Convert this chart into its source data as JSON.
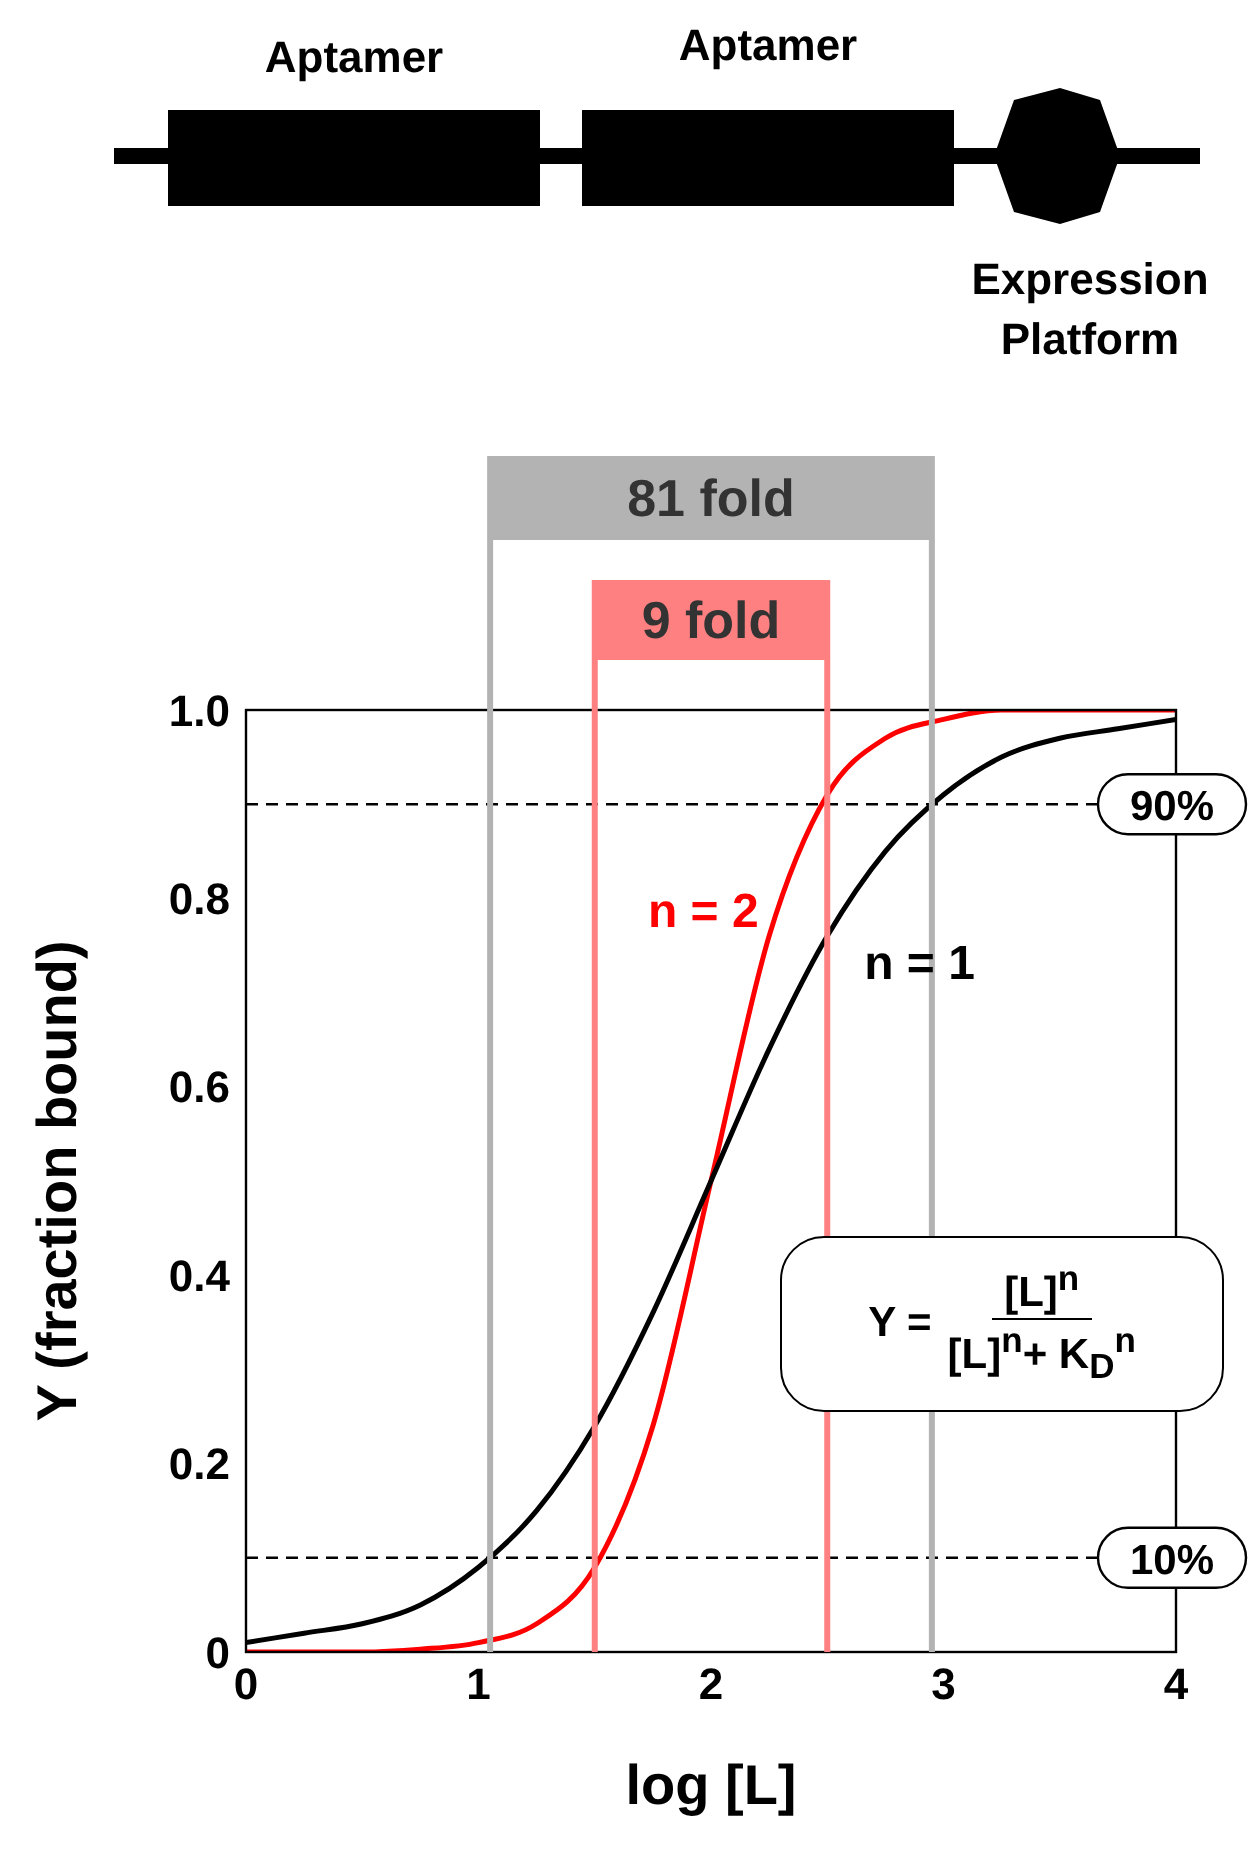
{
  "chart_data": {
    "type": "line",
    "xlabel": "log [L]",
    "ylabel": "Y (fraction bound)",
    "x": [
      0,
      0.25,
      0.5,
      0.75,
      1,
      1.25,
      1.5,
      1.75,
      2,
      2.25,
      2.5,
      2.75,
      3,
      3.25,
      3.5,
      3.75,
      4
    ],
    "series": [
      {
        "name": "n = 2",
        "color": "#ff0000",
        "values": [
          0,
          0,
          0,
          0.003,
          0.01,
          0.03,
          0.09,
          0.24,
          0.5,
          0.76,
          0.91,
          0.97,
          0.99,
          1,
          1,
          1,
          1
        ]
      },
      {
        "name": "n = 1",
        "color": "#000000",
        "values": [
          0.01,
          0.02,
          0.03,
          0.05,
          0.09,
          0.15,
          0.24,
          0.36,
          0.5,
          0.64,
          0.76,
          0.85,
          0.91,
          0.95,
          0.97,
          0.98,
          0.99
        ]
      }
    ],
    "xlim": [
      0,
      4
    ],
    "xticks": [
      0,
      1,
      2,
      3,
      4
    ],
    "ylim": [
      0,
      1
    ],
    "yticks": [
      {
        "value": 0,
        "label": "0"
      },
      0.2,
      0.4,
      0.6,
      0.8,
      {
        "value": 1,
        "label": "1.0"
      }
    ],
    "ref_lines": [
      {
        "axis": "y",
        "value": 0.9,
        "label": "90%",
        "color": "#000000",
        "line_style": "dashed"
      },
      {
        "axis": "y",
        "value": 0.1,
        "label": "10%",
        "color": "#000000",
        "line_style": "dashed"
      },
      {
        "axis": "x",
        "value": 1.05,
        "color": "#b3b3b3",
        "line_style": "solid"
      },
      {
        "axis": "x",
        "value": 2.95,
        "color": "#b3b3b3",
        "line_style": "solid"
      },
      {
        "axis": "x",
        "value": 1.5,
        "color": "#ff8080",
        "line_style": "solid"
      },
      {
        "axis": "x",
        "value": 2.5,
        "color": "#ff8080",
        "line_style": "solid"
      }
    ],
    "annotations": [
      "Y =",
      "[L]$^{n}$",
      "[L]$^{n}$+ K$_{D}$$^{n}$",
      "Aptamer",
      "Aptamer",
      "Expression Platform",
      "81 fold",
      "9 fold"
    ],
    "grid": false,
    "legend": false,
    "marker": "none",
    "line_style": "solid"
  }
}
